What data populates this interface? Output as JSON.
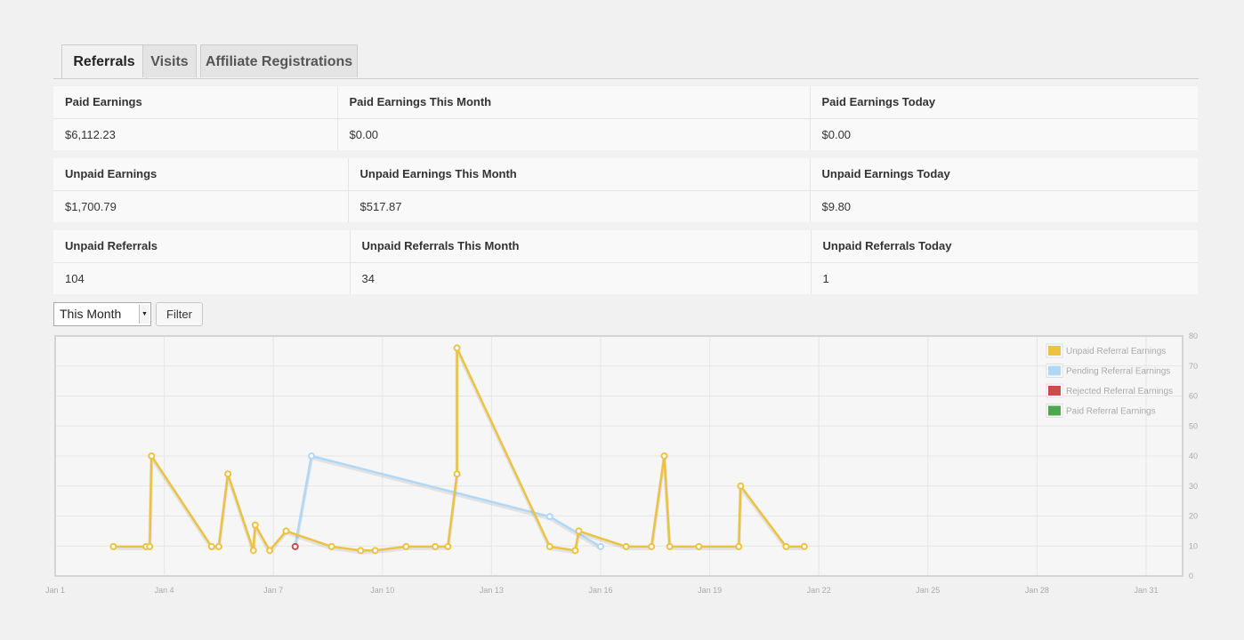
{
  "tabs": [
    {
      "label": "Referrals",
      "active": true
    },
    {
      "label": "Visits",
      "active": false
    },
    {
      "label": "Affiliate Registrations",
      "active": false
    }
  ],
  "stats": {
    "paid": {
      "headers": [
        "Paid Earnings",
        "Paid Earnings This Month",
        "Paid Earnings Today"
      ],
      "values": [
        "$6,112.23",
        "$0.00",
        "$0.00"
      ]
    },
    "unpaid": {
      "headers": [
        "Unpaid Earnings",
        "Unpaid Earnings This Month",
        "Unpaid Earnings Today"
      ],
      "values": [
        "$1,700.79",
        "$517.87",
        "$9.80"
      ]
    },
    "referrals": {
      "headers": [
        "Unpaid Referrals",
        "Unpaid Referrals This Month",
        "Unpaid Referrals Today"
      ],
      "values": [
        "104",
        "34",
        "1"
      ]
    }
  },
  "filter": {
    "range_selected": "This Month",
    "button_label": "Filter"
  },
  "chart_data": {
    "type": "line",
    "x_unit": "day of January",
    "xlim": [
      1,
      32
    ],
    "ylim": [
      0,
      80
    ],
    "x_ticks": [
      {
        "x": 1,
        "label": "Jan 1"
      },
      {
        "x": 4,
        "label": "Jan 4"
      },
      {
        "x": 7,
        "label": "Jan 7"
      },
      {
        "x": 10,
        "label": "Jan 10"
      },
      {
        "x": 13,
        "label": "Jan 13"
      },
      {
        "x": 16,
        "label": "Jan 16"
      },
      {
        "x": 19,
        "label": "Jan 19"
      },
      {
        "x": 22,
        "label": "Jan 22"
      },
      {
        "x": 25,
        "label": "Jan 25"
      },
      {
        "x": 28,
        "label": "Jan 28"
      },
      {
        "x": 31,
        "label": "Jan 31"
      }
    ],
    "y_ticks": [
      0,
      10,
      20,
      30,
      40,
      50,
      60,
      70,
      80
    ],
    "grid": true,
    "legend_position": "top-right",
    "series": [
      {
        "name": "Unpaid Referral Earnings",
        "color": "#edc240",
        "points": [
          [
            2.6,
            9.8
          ],
          [
            3.5,
            9.8
          ],
          [
            3.6,
            9.8
          ],
          [
            3.65,
            40
          ],
          [
            5.3,
            9.8
          ],
          [
            5.5,
            9.8
          ],
          [
            5.75,
            34
          ],
          [
            6.45,
            8.5
          ],
          [
            6.5,
            17
          ],
          [
            6.9,
            8.5
          ],
          [
            7.35,
            15
          ],
          [
            8.6,
            9.8
          ],
          [
            9.4,
            8.5
          ],
          [
            9.8,
            8.5
          ],
          [
            10.65,
            9.8
          ],
          [
            11.45,
            9.8
          ],
          [
            11.8,
            9.8
          ],
          [
            12.05,
            34
          ],
          [
            12.05,
            76
          ],
          [
            14.6,
            9.8
          ],
          [
            15.3,
            8.5
          ],
          [
            15.4,
            15
          ],
          [
            16.7,
            9.8
          ],
          [
            17.4,
            9.8
          ],
          [
            17.75,
            40
          ],
          [
            17.9,
            9.8
          ],
          [
            18.7,
            9.8
          ],
          [
            19.8,
            9.8
          ],
          [
            19.85,
            30
          ],
          [
            21.1,
            9.8
          ],
          [
            21.6,
            9.8
          ]
        ]
      },
      {
        "name": "Pending Referral Earnings",
        "color": "#afd8f8",
        "points": [
          [
            7.6,
            9.8
          ],
          [
            8.05,
            40
          ],
          [
            14.6,
            19.8
          ],
          [
            16.0,
            9.8
          ]
        ]
      },
      {
        "name": "Rejected Referral Earnings",
        "color": "#cb4b4b",
        "points": [
          [
            7.6,
            9.8
          ]
        ]
      },
      {
        "name": "Paid Referral Earnings",
        "color": "#4da74d",
        "points": []
      }
    ]
  }
}
